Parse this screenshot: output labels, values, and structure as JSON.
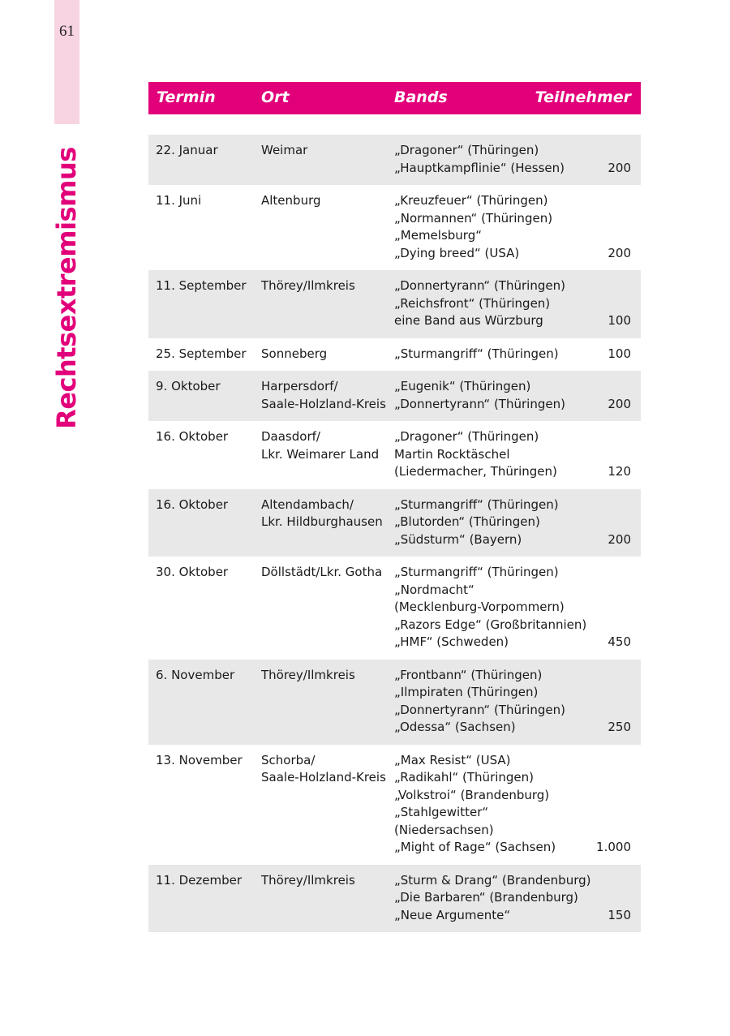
{
  "page_number": "61",
  "section_title": "Rechtsextremismus",
  "colors": {
    "accent": "#e2007a",
    "tab": "#f8d3e1",
    "row_shade": "#e8e8e8"
  },
  "table": {
    "headers": {
      "termin": "Termin",
      "ort": "Ort",
      "bands": "Bands",
      "teilnehmer": "Teilnehmer"
    },
    "rows": [
      {
        "termin": "22. Januar",
        "ort": "Weimar",
        "bands": "„Dragoner“ (Thüringen)\n„Hauptkampflinie“ (Hessen)",
        "teilnehmer": "200"
      },
      {
        "termin": "11. Juni",
        "ort": "Altenburg",
        "bands": "„Kreuzfeuer“ (Thüringen)\n„Normannen“ (Thüringen)\n„Memelsburg“\n„Dying breed“ (USA)",
        "teilnehmer": "200"
      },
      {
        "termin": "11. September",
        "ort": "Thörey/Ilmkreis",
        "bands": "„Donnertyrann“ (Thüringen)\n„Reichsfront“ (Thüringen)\neine Band aus Würzburg",
        "teilnehmer": "100"
      },
      {
        "termin": "25. September",
        "ort": "Sonneberg",
        "bands": "„Sturmangriff“ (Thüringen)",
        "teilnehmer": "100"
      },
      {
        "termin": "9. Oktober",
        "ort": "Harpersdorf/\nSaale-Holzland-Kreis",
        "bands": "„Eugenik“ (Thüringen)\n„Donnertyrann“ (Thüringen)",
        "teilnehmer": "200"
      },
      {
        "termin": "16. Oktober",
        "ort": "Daasdorf/\nLkr. Weimarer Land",
        "bands": "„Dragoner“ (Thüringen)\nMartin Rocktäschel\n(Liedermacher, Thüringen)",
        "teilnehmer": "120"
      },
      {
        "termin": "16. Oktober",
        "ort": "Altendambach/\nLkr. Hildburghausen",
        "bands": "„Sturmangriff“ (Thüringen)\n„Blutorden“ (Thüringen)\n„Südsturm“ (Bayern)",
        "teilnehmer": "200"
      },
      {
        "termin": "30. Oktober",
        "ort": "Döllstädt/Lkr. Gotha",
        "bands": "„Sturmangriff“ (Thüringen)\n„Nordmacht“\n(Mecklenburg-Vorpommern)\n„Razors Edge“ (Großbritannien)\n„HMF“ (Schweden)",
        "teilnehmer": "450"
      },
      {
        "termin": "6. November",
        "ort": "Thörey/Ilmkreis",
        "bands": "„Frontbann“ (Thüringen)\n„Ilmpiraten (Thüringen)\n„Donnertyrann“ (Thüringen)\n„Odessa“ (Sachsen)",
        "teilnehmer": "250"
      },
      {
        "termin": "13. November",
        "ort": "Schorba/\nSaale-Holzland-Kreis",
        "bands": "„Max Resist“ (USA)\n„Radikahl“ (Thüringen)\n„Volkstroi“ (Brandenburg)\n„Stahlgewitter“\n(Niedersachsen)\n„Might of Rage“ (Sachsen)",
        "teilnehmer": "1.000"
      },
      {
        "termin": "11. Dezember",
        "ort": "Thörey/Ilmkreis",
        "bands": "„Sturm & Drang“ (Brandenburg)\n„Die Barbaren“ (Brandenburg)\n„Neue Argumente“",
        "teilnehmer": "150"
      }
    ]
  }
}
